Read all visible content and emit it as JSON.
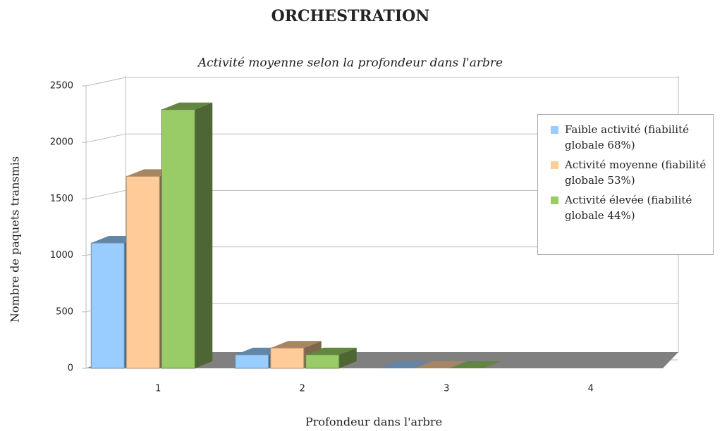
{
  "chart_data": {
    "type": "bar3d",
    "title": "ORCHESTRATION",
    "subtitle": "Activité moyenne selon la profondeur dans l'arbre",
    "x_label": "Profondeur dans l'arbre",
    "y_label": "Nombre de paquets transmis",
    "categories": [
      "1",
      "2",
      "3",
      "4"
    ],
    "series": [
      {
        "name": "Faible activité (fiabilité globale 68%)",
        "color": "#99ccff",
        "values": [
          1110,
          120,
          0,
          null
        ]
      },
      {
        "name": "Activité moyenne (fiabilité globale 53%)",
        "color": "#ffcc99",
        "values": [
          1700,
          180,
          0,
          null
        ]
      },
      {
        "name": "Activité élevée (fiabilité globale 44%)",
        "color": "#99cc66",
        "values": [
          2290,
          120,
          0,
          null
        ]
      }
    ],
    "ylim": [
      0,
      2500
    ],
    "yticks": [
      0,
      500,
      1000,
      1500,
      2000,
      2500
    ],
    "grid": true
  }
}
